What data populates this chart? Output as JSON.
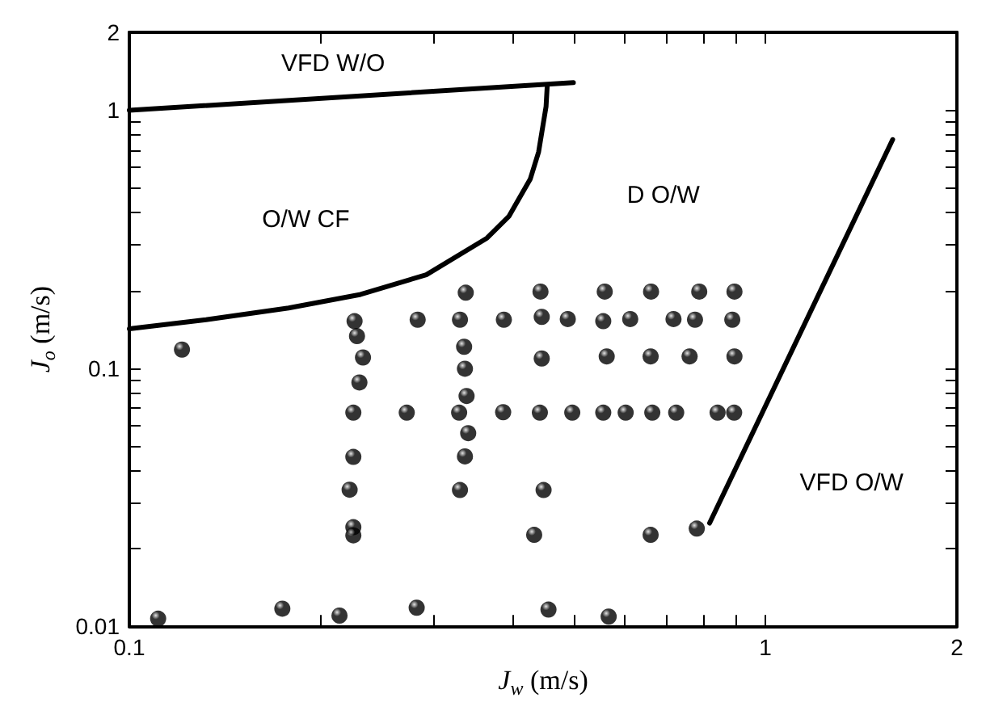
{
  "chart_data": {
    "type": "scatter",
    "xlabel": "J$_{w}$ (m/s)",
    "ylabel": "J$_{o}$ (m/s)",
    "log": "xy",
    "grid": false,
    "xlim": [
      0.1,
      2
    ],
    "xticks": [
      0.1,
      {
        "value": 0.2,
        "label": null
      },
      {
        "value": 0.3,
        "label": null
      },
      {
        "value": 0.4,
        "label": null
      },
      {
        "value": 0.5,
        "label": null
      },
      {
        "value": 0.6,
        "label": null
      },
      {
        "value": 0.7,
        "label": null
      },
      {
        "value": 0.8,
        "label": null
      },
      {
        "value": 0.9,
        "label": null
      },
      1,
      2
    ],
    "ylim": [
      0.01,
      2
    ],
    "yticks": [
      0.01,
      {
        "value": 0.02,
        "label": null
      },
      {
        "value": 0.03,
        "label": null
      },
      {
        "value": 0.04,
        "label": null
      },
      {
        "value": 0.05,
        "label": null
      },
      {
        "value": 0.06,
        "label": null
      },
      {
        "value": 0.07,
        "label": null
      },
      {
        "value": 0.08,
        "label": null
      },
      {
        "value": 0.09,
        "label": null
      },
      0.1,
      {
        "value": 0.2,
        "label": null
      },
      {
        "value": 0.3,
        "label": null
      },
      {
        "value": 0.4,
        "label": null
      },
      {
        "value": 0.5,
        "label": null
      },
      {
        "value": 0.6,
        "label": null
      },
      {
        "value": 0.7,
        "label": null
      },
      {
        "value": 0.8,
        "label": null
      },
      {
        "value": 0.9,
        "label": null
      },
      1,
      2
    ],
    "series": [
      {
        "marker": "circle",
        "color": "#000000",
        "x": [
          0.338,
          0.443,
          0.559,
          0.661,
          0.787,
          0.894,
          0.226,
          0.284,
          0.331,
          0.388,
          0.445,
          0.489,
          0.556,
          0.613,
          0.717,
          0.775,
          0.887,
          0.228,
          0.233,
          0.23,
          0.121,
          0.336,
          0.337,
          0.339,
          0.341,
          0.337,
          0.331,
          0.225,
          0.273,
          0.33,
          0.387,
          0.442,
          0.497,
          0.556,
          0.603,
          0.664,
          0.724,
          0.841,
          0.893,
          0.445,
          0.563,
          0.66,
          0.76,
          0.894,
          0.225,
          0.222,
          0.225,
          0.225,
          0.448,
          0.433,
          0.66,
          0.78,
          0.111,
          0.174,
          0.214,
          0.283,
          0.456,
          0.567
        ],
        "values": [
          0.196,
          0.198,
          0.198,
          0.198,
          0.198,
          0.198,
          0.152,
          0.154,
          0.154,
          0.154,
          0.158,
          0.155,
          0.152,
          0.155,
          0.155,
          0.154,
          0.154,
          0.133,
          0.11,
          0.088,
          0.118,
          0.121,
          0.0995,
          0.078,
          0.056,
          0.0455,
          0.0337,
          0.0672,
          0.0672,
          0.0672,
          0.0675,
          0.0672,
          0.0672,
          0.0672,
          0.0672,
          0.0672,
          0.0672,
          0.0672,
          0.0672,
          0.109,
          0.111,
          0.111,
          0.111,
          0.111,
          0.0453,
          0.0338,
          0.0242,
          0.0225,
          0.0337,
          0.0226,
          0.0226,
          0.0239,
          0.0107,
          0.0117,
          0.011,
          0.0118,
          0.0116,
          0.0109
        ]
      },
      {
        "type": "line",
        "marker": "none",
        "line_style": "solid",
        "color": "#000000",
        "x": [
          0.1,
          0.499
        ],
        "values": [
          0.997,
          1.277
        ]
      },
      {
        "type": "line",
        "marker": "none",
        "line_style": "solid",
        "color": "#000000",
        "x": [
          0.1,
          0.132,
          0.178,
          0.231,
          0.293,
          0.365,
          0.395,
          0.427,
          0.44,
          0.452,
          0.454
        ],
        "values": [
          0.142,
          0.154,
          0.171,
          0.193,
          0.23,
          0.319,
          0.387,
          0.541,
          0.688,
          1.03,
          1.25
        ]
      },
      {
        "type": "line",
        "marker": "none",
        "line_style": "solid",
        "color": "#000000",
        "x": [
          0.817,
          1.585
        ],
        "values": [
          0.0251,
          0.768
        ]
      }
    ],
    "annotations": [
      "VFD W/O",
      "O/W CF",
      "D O/W",
      "VFD O/W"
    ]
  }
}
